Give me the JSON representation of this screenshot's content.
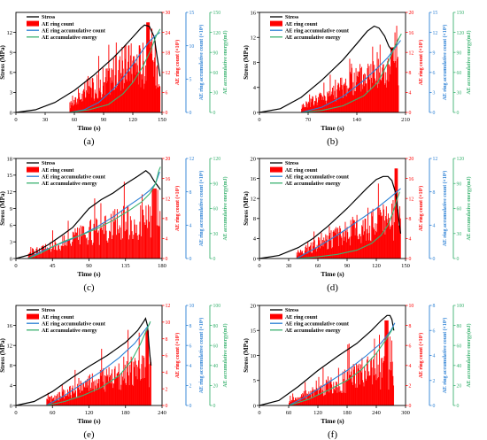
{
  "legend_labels": {
    "stress": "Stress",
    "ring": "AE ring count",
    "accum": "AE ring accumulative count",
    "energy": "AE accumulative energy"
  },
  "axis_labels": {
    "x": "Time (s)",
    "stress": "Stress (MPa)",
    "ring": "AE ring count (×10³)",
    "accum": "AE ring accumulative count (×10⁶)",
    "energy": "AE accumulative energy(mJ)"
  },
  "colors": {
    "stress": "#000000",
    "ring": "#ff0000",
    "accum": "#2a7fd4",
    "energy": "#3cb371"
  },
  "chart_data": [
    {
      "type": "line",
      "panel_label": "(a)",
      "xlim": [
        0,
        150
      ],
      "xticks": [
        0,
        30,
        60,
        90,
        120,
        150
      ],
      "stress_lim": [
        0,
        15
      ],
      "stress_ticks": [
        0,
        3,
        6,
        9,
        12
      ],
      "ring_lim": [
        0,
        30
      ],
      "ring_ticks": [
        0,
        6,
        12,
        18,
        24,
        30
      ],
      "accum_lim": [
        0,
        15
      ],
      "accum_ticks": [
        0,
        5,
        10,
        15
      ],
      "energy_lim": [
        0,
        150
      ],
      "energy_ticks": [
        0,
        30,
        60,
        90,
        120,
        150
      ],
      "ring_start": 55,
      "ring_level": 20,
      "ring_peak": 27,
      "ring_peak_x": 135,
      "series": [
        {
          "name": "Stress",
          "axis": "stress",
          "x": [
            0,
            20,
            40,
            60,
            80,
            100,
            110,
            120,
            128,
            132,
            137,
            142,
            145,
            148
          ],
          "y": [
            0,
            0.4,
            1.5,
            3.3,
            5.6,
            8.2,
            9.7,
            11.3,
            12.6,
            13.1,
            12.9,
            11.3,
            8.3,
            5.4
          ]
        },
        {
          "name": "AE ring accumulative count",
          "axis": "accum",
          "x": [
            55,
            70,
            85,
            100,
            110,
            120,
            130,
            138,
            144,
            148
          ],
          "y": [
            0,
            0.4,
            1.5,
            3.5,
            5.2,
            7.2,
            9.3,
            10.8,
            11.6,
            12.0
          ]
        },
        {
          "name": "AE accumulative energy",
          "axis": "energy",
          "x": [
            55,
            75,
            95,
            110,
            120,
            130,
            138,
            144,
            148
          ],
          "y": [
            0,
            4,
            12,
            28,
            45,
            68,
            92,
            115,
            125
          ]
        }
      ]
    },
    {
      "type": "line",
      "panel_label": "(b)",
      "xlim": [
        0,
        210
      ],
      "xticks": [
        0,
        70,
        140,
        210
      ],
      "stress_lim": [
        0,
        16
      ],
      "stress_ticks": [
        0,
        4,
        8,
        12,
        16
      ],
      "ring_lim": [
        0,
        20
      ],
      "ring_ticks": [
        0,
        4,
        8,
        12,
        16,
        20
      ],
      "accum_lim": [
        0,
        15
      ],
      "accum_ticks": [
        0,
        3,
        6,
        9,
        12,
        15
      ],
      "energy_lim": [
        0,
        150
      ],
      "energy_ticks": [
        0,
        30,
        60,
        90,
        120,
        150
      ],
      "ring_start": 60,
      "ring_level": 11,
      "ring_peak": 13,
      "ring_peak_x": 190,
      "series": [
        {
          "name": "Stress",
          "axis": "stress",
          "x": [
            0,
            30,
            60,
            90,
            120,
            140,
            155,
            165,
            172,
            180,
            186,
            190,
            195,
            200
          ],
          "y": [
            0,
            0.6,
            2.4,
            5.2,
            8.4,
            11.0,
            13.0,
            13.8,
            13.5,
            12.2,
            10.6,
            10.0,
            10.5,
            11.8
          ]
        },
        {
          "name": "AE ring accumulative count",
          "axis": "accum",
          "x": [
            60,
            90,
            120,
            150,
            170,
            185,
            195,
            203
          ],
          "y": [
            0,
            0.8,
            2.4,
            4.8,
            6.7,
            8.3,
            9.7,
            10.8
          ]
        },
        {
          "name": "AE accumulative energy",
          "axis": "energy",
          "x": [
            60,
            90,
            120,
            150,
            170,
            185,
            193,
            200,
            204
          ],
          "y": [
            0,
            3,
            10,
            25,
            45,
            75,
            95,
            110,
            118
          ]
        }
      ]
    },
    {
      "type": "line",
      "panel_label": "(c)",
      "xlim": [
        0,
        180
      ],
      "xticks": [
        0,
        45,
        90,
        135,
        180
      ],
      "stress_lim": [
        0,
        18
      ],
      "stress_ticks": [
        0,
        3,
        6,
        9,
        12,
        15,
        18
      ],
      "ring_lim": [
        0,
        20
      ],
      "ring_ticks": [
        0,
        4,
        8,
        12,
        16,
        20
      ],
      "accum_lim": [
        0,
        12
      ],
      "accum_ticks": [
        0,
        4,
        8,
        12
      ],
      "energy_lim": [
        0,
        120
      ],
      "energy_ticks": [
        0,
        30,
        60,
        90,
        120
      ],
      "ring_start": 15,
      "ring_level": 10,
      "ring_peak": 14,
      "ring_peak_x": 170,
      "series": [
        {
          "name": "Stress",
          "axis": "stress",
          "x": [
            0,
            20,
            40,
            55,
            70,
            90,
            105,
            120,
            135,
            150,
            160,
            165,
            170,
            175,
            178
          ],
          "y": [
            0,
            0.8,
            2.5,
            4.0,
            5.6,
            9.0,
            10.6,
            11.8,
            13.4,
            14.8,
            15.8,
            15.2,
            14.0,
            13.0,
            12.4
          ]
        },
        {
          "name": "AE ring accumulative count",
          "axis": "accum",
          "x": [
            15,
            30,
            45,
            60,
            80,
            100,
            120,
            140,
            155,
            165,
            172,
            177
          ],
          "y": [
            0,
            0.8,
            1.4,
            2.0,
            2.8,
            3.8,
            5.0,
            6.4,
            7.4,
            8.2,
            9.0,
            10.4
          ]
        },
        {
          "name": "AE accumulative energy",
          "axis": "energy",
          "x": [
            15,
            30,
            45,
            60,
            80,
            100,
            120,
            140,
            155,
            165,
            172,
            176,
            178
          ],
          "y": [
            0,
            6,
            14,
            21,
            28,
            36,
            46,
            58,
            68,
            78,
            90,
            105,
            110
          ]
        }
      ]
    },
    {
      "type": "line",
      "panel_label": "(d)",
      "xlim": [
        0,
        150
      ],
      "xticks": [
        0,
        30,
        60,
        90,
        120,
        150
      ],
      "stress_lim": [
        0,
        20
      ],
      "stress_ticks": [
        0,
        4,
        8,
        12,
        16,
        20
      ],
      "ring_lim": [
        0,
        20
      ],
      "ring_ticks": [
        0,
        4,
        8,
        12,
        16,
        20
      ],
      "accum_lim": [
        0,
        12
      ],
      "accum_ticks": [
        0,
        4,
        8,
        12
      ],
      "energy_lim": [
        0,
        120
      ],
      "energy_ticks": [
        0,
        30,
        60,
        90,
        120
      ],
      "ring_start": 38,
      "ring_level": 10,
      "ring_peak": 18,
      "ring_peak_x": 140,
      "series": [
        {
          "name": "Stress",
          "axis": "stress",
          "x": [
            0,
            20,
            40,
            55,
            70,
            90,
            110,
            120,
            127,
            132,
            136,
            140,
            143,
            145
          ],
          "y": [
            0,
            0.6,
            2.2,
            4.0,
            6.4,
            10.0,
            14.0,
            15.8,
            16.4,
            16.4,
            15.6,
            13.0,
            8.0,
            5.0
          ]
        },
        {
          "name": "AE ring accumulative count",
          "axis": "accum",
          "x": [
            38,
            60,
            80,
            100,
            120,
            135,
            145
          ],
          "y": [
            0,
            1.4,
            2.8,
            4.4,
            6.0,
            7.4,
            8.4
          ]
        },
        {
          "name": "AE accumulative energy",
          "axis": "energy",
          "x": [
            38,
            60,
            80,
            100,
            115,
            125,
            132,
            137,
            141,
            144
          ],
          "y": [
            0,
            2,
            5,
            10,
            18,
            28,
            40,
            55,
            70,
            80
          ]
        }
      ]
    },
    {
      "type": "line",
      "panel_label": "(e)",
      "xlim": [
        0,
        240
      ],
      "xticks": [
        0,
        60,
        120,
        180,
        240
      ],
      "stress_lim": [
        0,
        20
      ],
      "stress_ticks": [
        0,
        4,
        8,
        12,
        16
      ],
      "ring_lim": [
        0,
        12
      ],
      "ring_ticks": [
        0,
        2,
        4,
        6,
        8,
        10,
        12
      ],
      "accum_lim": [
        0,
        10
      ],
      "accum_ticks": [
        0,
        2,
        4,
        6,
        8,
        10
      ],
      "energy_lim": [
        0,
        100
      ],
      "energy_ticks": [
        0,
        20,
        40,
        60,
        80,
        100
      ],
      "ring_start": 50,
      "ring_level": 5.5,
      "ring_peak": 9,
      "ring_peak_x": 215,
      "series": [
        {
          "name": "Stress",
          "axis": "stress",
          "x": [
            0,
            30,
            60,
            90,
            120,
            150,
            180,
            200,
            210,
            213,
            216,
            220,
            222
          ],
          "y": [
            0,
            0.8,
            2.8,
            5.4,
            7.8,
            10.0,
            12.6,
            15.0,
            16.8,
            17.4,
            16.0,
            10.0,
            8.0
          ]
        },
        {
          "name": "AE ring accumulative count",
          "axis": "accum",
          "x": [
            50,
            80,
            110,
            140,
            170,
            195,
            210,
            220
          ],
          "y": [
            0,
            1.0,
            2.2,
            3.4,
            4.8,
            6.2,
            7.4,
            8.2
          ]
        },
        {
          "name": "AE accumulative energy",
          "axis": "energy",
          "x": [
            50,
            80,
            110,
            140,
            170,
            190,
            205,
            215,
            221
          ],
          "y": [
            0,
            4,
            10,
            18,
            30,
            45,
            62,
            76,
            84
          ]
        }
      ]
    },
    {
      "type": "line",
      "panel_label": "(f)",
      "xlim": [
        0,
        300
      ],
      "xticks": [
        0,
        60,
        120,
        180,
        240,
        300
      ],
      "stress_lim": [
        0,
        20
      ],
      "stress_ticks": [
        0,
        5,
        10,
        15,
        20
      ],
      "ring_lim": [
        0,
        10
      ],
      "ring_ticks": [
        0,
        2,
        4,
        6,
        8,
        10
      ],
      "accum_lim": [
        0,
        8
      ],
      "accum_ticks": [
        0,
        2,
        4,
        6,
        8
      ],
      "energy_lim": [
        0,
        100
      ],
      "energy_ticks": [
        0,
        20,
        40,
        60,
        80,
        100
      ],
      "ring_start": 60,
      "ring_level": 4.5,
      "ring_peak": 8.5,
      "ring_peak_x": 260,
      "series": [
        {
          "name": "Stress",
          "axis": "stress",
          "x": [
            0,
            40,
            80,
            120,
            160,
            200,
            230,
            250,
            262,
            268,
            272,
            276
          ],
          "y": [
            0,
            1.0,
            3.8,
            7.0,
            9.8,
            12.4,
            15.0,
            17.0,
            18.0,
            18.0,
            17.2,
            15.0
          ]
        },
        {
          "name": "AE ring accumulative count",
          "axis": "accum",
          "x": [
            60,
            100,
            140,
            180,
            220,
            250,
            270,
            278
          ],
          "y": [
            0,
            0.8,
            1.8,
            2.8,
            4.0,
            5.0,
            6.0,
            6.6
          ]
        },
        {
          "name": "AE accumulative energy",
          "axis": "energy",
          "x": [
            60,
            100,
            140,
            180,
            210,
            240,
            260,
            275
          ],
          "y": [
            0,
            6,
            15,
            25,
            36,
            52,
            66,
            78
          ]
        }
      ]
    }
  ]
}
